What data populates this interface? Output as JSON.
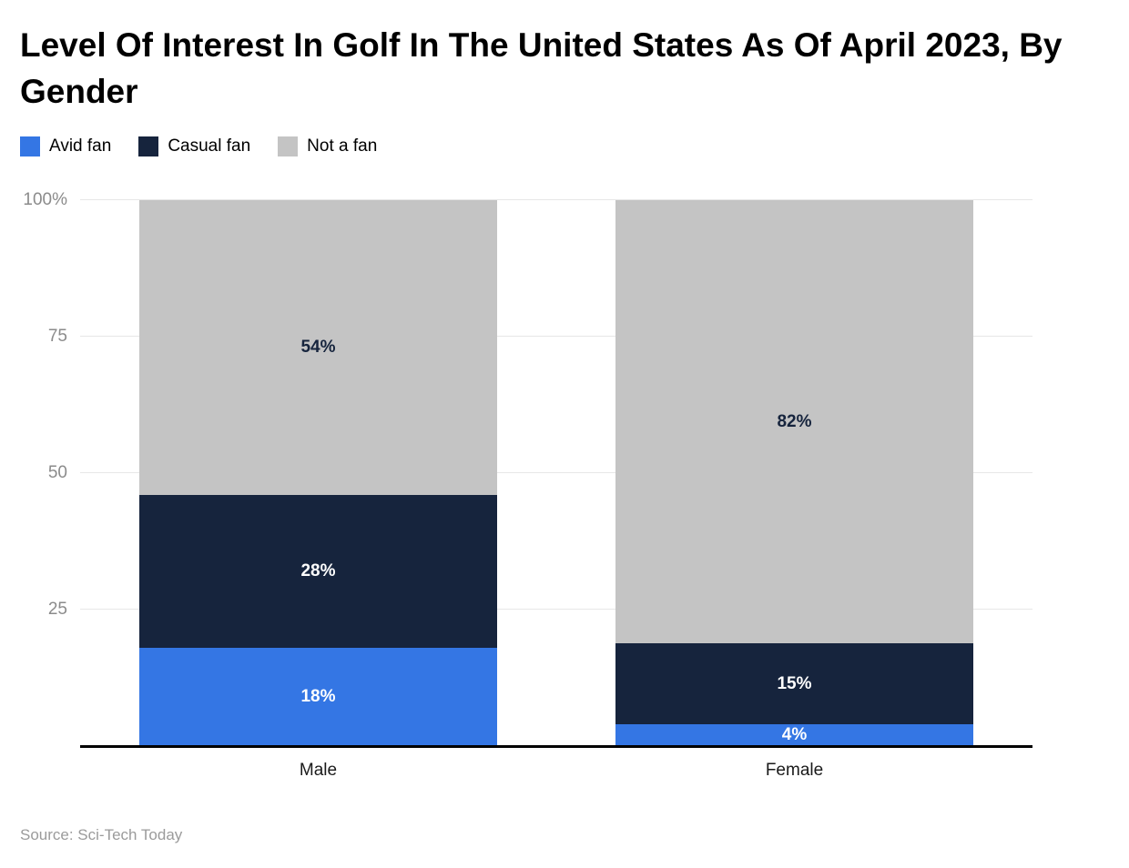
{
  "title": "Level Of Interest In Golf In The United States As Of April 2023, By Gender",
  "source": "Source: Sci-Tech Today",
  "chart_data": {
    "type": "bar",
    "stacked": true,
    "orientation": "vertical",
    "categories": [
      "Male",
      "Female"
    ],
    "series": [
      {
        "name": "Avid fan",
        "color": "#3476e4",
        "label_color": "#ffffff",
        "values": [
          18,
          4
        ]
      },
      {
        "name": "Casual fan",
        "color": "#16243d",
        "label_color": "#ffffff",
        "values": [
          28,
          15
        ]
      },
      {
        "name": "Not a fan",
        "color": "#c4c4c4",
        "label_color": "#16243d",
        "values": [
          54,
          82
        ]
      }
    ],
    "ylim": [
      0,
      100
    ],
    "yticks": [
      {
        "label": "25",
        "value": 25
      },
      {
        "label": "50",
        "value": 50
      },
      {
        "label": "75",
        "value": 75
      },
      {
        "label": "100%",
        "value": 100
      }
    ],
    "value_suffix": "%",
    "grid": true,
    "legend_position": "top-left"
  }
}
